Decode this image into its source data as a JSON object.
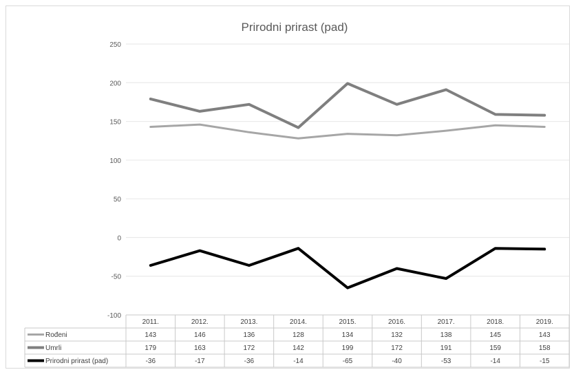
{
  "chart_data": {
    "type": "line",
    "title": "Prirodni prirast (pad)",
    "categories": [
      "2011.",
      "2012.",
      "2013.",
      "2014.",
      "2015.",
      "2016.",
      "2017.",
      "2018.",
      "2019."
    ],
    "ylim": [
      -100,
      250
    ],
    "yticks": [
      -100,
      -50,
      0,
      50,
      100,
      150,
      200,
      250
    ],
    "grid": true,
    "legend": "data-table",
    "series": [
      {
        "name": "Rođeni",
        "values": [
          143,
          146,
          136,
          128,
          134,
          132,
          138,
          145,
          143
        ],
        "color": "#a6a6a6",
        "width": 3
      },
      {
        "name": "Umrli",
        "values": [
          179,
          163,
          172,
          142,
          199,
          172,
          191,
          159,
          158
        ],
        "color": "#7f7f7f",
        "width": 4
      },
      {
        "name": "Prirodni prirast (pad)",
        "values": [
          -36,
          -17,
          -36,
          -14,
          -65,
          -40,
          -53,
          -14,
          -15
        ],
        "color": "#000000",
        "width": 4
      }
    ]
  }
}
